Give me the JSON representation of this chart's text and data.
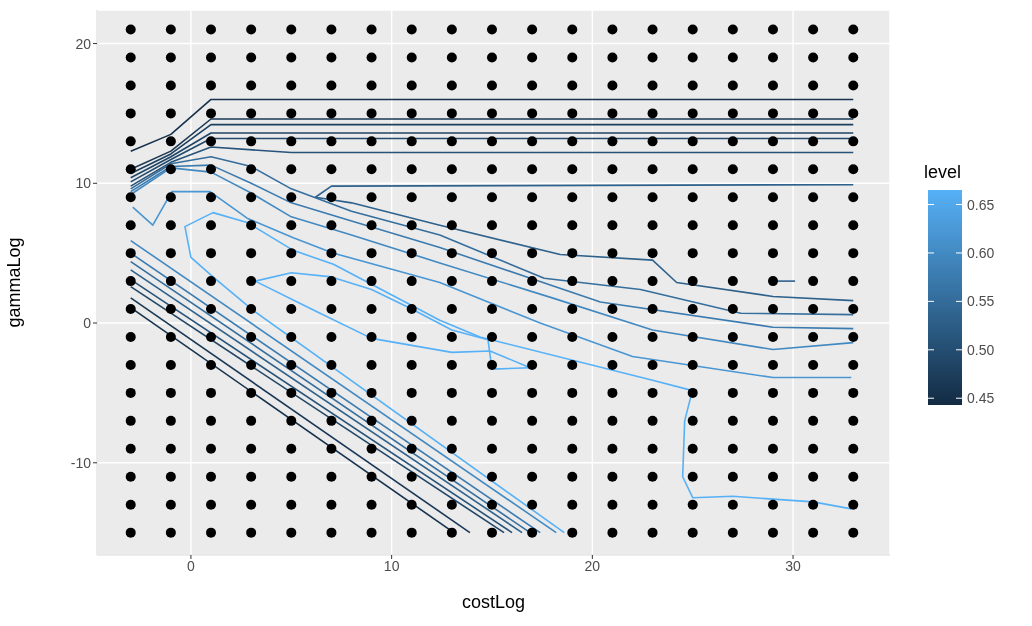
{
  "chart_data": {
    "type": "line",
    "xlabel": "costLog",
    "ylabel": "gammaLog",
    "clabel": "level",
    "clim": [
      0.443,
      0.665
    ],
    "cticks": [
      0.45,
      {
        "value": 0.5,
        "label": "0.50"
      },
      0.55,
      {
        "value": 0.6,
        "label": "0.60"
      },
      0.65
    ],
    "colors": [
      "#132b43",
      "#56b1f7"
    ],
    "xlim": [
      -4.68,
      34.83
    ],
    "ylim": [
      -16.6,
      22.4
    ],
    "xticks": [
      0,
      10,
      20,
      30
    ],
    "yticks": [
      -10,
      0,
      10,
      20
    ],
    "grid": true,
    "marker": "none",
    "series": [
      {
        "type": "scatter",
        "marker": "circle",
        "color": "#000000",
        "x": [
          -3,
          -1,
          1,
          3,
          5,
          7,
          9,
          11,
          13,
          15,
          17,
          19,
          21,
          23,
          25,
          27,
          29,
          31,
          33,
          -3,
          -1,
          1,
          3,
          5,
          7,
          9,
          11,
          13,
          15,
          17,
          19,
          21,
          23,
          25,
          27,
          29,
          31,
          33,
          -3,
          -1,
          1,
          3,
          5,
          7,
          9,
          11,
          13,
          15,
          17,
          19,
          21,
          23,
          25,
          27,
          29,
          31,
          33,
          -3,
          -1,
          1,
          3,
          5,
          7,
          9,
          11,
          13,
          15,
          17,
          19,
          21,
          23,
          25,
          27,
          29,
          31,
          33,
          -3,
          -1,
          1,
          3,
          5,
          7,
          9,
          11,
          13,
          15,
          17,
          19,
          21,
          23,
          25,
          27,
          29,
          31,
          33,
          -3,
          -1,
          1,
          3,
          5,
          7,
          9,
          11,
          13,
          15,
          17,
          19,
          21,
          23,
          25,
          27,
          29,
          31,
          33,
          -3,
          -1,
          1,
          3,
          5,
          7,
          9,
          11,
          13,
          15,
          17,
          19,
          21,
          23,
          25,
          27,
          29,
          31,
          33,
          -3,
          -1,
          1,
          3,
          5,
          7,
          9,
          11,
          13,
          15,
          17,
          19,
          21,
          23,
          25,
          27,
          29,
          31,
          33,
          -3,
          -1,
          1,
          3,
          5,
          7,
          9,
          11,
          13,
          15,
          17,
          19,
          21,
          23,
          25,
          27,
          29,
          31,
          33,
          -3,
          -1,
          1,
          3,
          5,
          7,
          9,
          11,
          13,
          15,
          17,
          19,
          21,
          23,
          25,
          27,
          29,
          31,
          33,
          -3,
          -1,
          1,
          3,
          5,
          7,
          9,
          11,
          13,
          15,
          17,
          19,
          21,
          23,
          25,
          27,
          29,
          31,
          33,
          -3,
          -1,
          1,
          3,
          5,
          7,
          9,
          11,
          13,
          15,
          17,
          19,
          21,
          23,
          25,
          27,
          29,
          31,
          33,
          -3,
          -1,
          1,
          3,
          5,
          7,
          9,
          11,
          13,
          15,
          17,
          19,
          21,
          23,
          25,
          27,
          29,
          31,
          33,
          -3,
          -1,
          1,
          3,
          5,
          7,
          9,
          11,
          13,
          15,
          17,
          19,
          21,
          23,
          25,
          27,
          29,
          31,
          33,
          -3,
          -1,
          1,
          3,
          5,
          7,
          9,
          11,
          13,
          15,
          17,
          19,
          21,
          23,
          25,
          27,
          29,
          31,
          33,
          -3,
          -1,
          1,
          3,
          5,
          7,
          9,
          11,
          13,
          15,
          17,
          19,
          21,
          23,
          25,
          27,
          29,
          31,
          33,
          -3,
          -1,
          1,
          3,
          5,
          7,
          9,
          11,
          13,
          15,
          17,
          19,
          21,
          23,
          25,
          27,
          29,
          31,
          33,
          -3,
          -1,
          1,
          3,
          5,
          7,
          9,
          11,
          13,
          15,
          17,
          19,
          21,
          23,
          25,
          27,
          29,
          31,
          33,
          -3,
          -1,
          1,
          3,
          5,
          7,
          9,
          11,
          13,
          15,
          17,
          19,
          21,
          23,
          25,
          27,
          29,
          31,
          33
        ],
        "values": [
          -15,
          -15,
          -15,
          -15,
          -15,
          -15,
          -15,
          -15,
          -15,
          -15,
          -15,
          -15,
          -15,
          -15,
          -15,
          -15,
          -15,
          -15,
          -15,
          -13,
          -13,
          -13,
          -13,
          -13,
          -13,
          -13,
          -13,
          -13,
          -13,
          -13,
          -13,
          -13,
          -13,
          -13,
          -13,
          -13,
          -13,
          -13,
          -11,
          -11,
          -11,
          -11,
          -11,
          -11,
          -11,
          -11,
          -11,
          -11,
          -11,
          -11,
          -11,
          -11,
          -11,
          -11,
          -11,
          -11,
          -11,
          -9,
          -9,
          -9,
          -9,
          -9,
          -9,
          -9,
          -9,
          -9,
          -9,
          -9,
          -9,
          -9,
          -9,
          -9,
          -9,
          -9,
          -9,
          -9,
          -7,
          -7,
          -7,
          -7,
          -7,
          -7,
          -7,
          -7,
          -7,
          -7,
          -7,
          -7,
          -7,
          -7,
          -7,
          -7,
          -7,
          -7,
          -7,
          -5,
          -5,
          -5,
          -5,
          -5,
          -5,
          -5,
          -5,
          -5,
          -5,
          -5,
          -5,
          -5,
          -5,
          -5,
          -5,
          -5,
          -5,
          -5,
          -3,
          -3,
          -3,
          -3,
          -3,
          -3,
          -3,
          -3,
          -3,
          -3,
          -3,
          -3,
          -3,
          -3,
          -3,
          -3,
          -3,
          -3,
          -3,
          -1,
          -1,
          -1,
          -1,
          -1,
          -1,
          -1,
          -1,
          -1,
          -1,
          -1,
          -1,
          -1,
          -1,
          -1,
          -1,
          -1,
          -1,
          -1,
          1,
          1,
          1,
          1,
          1,
          1,
          1,
          1,
          1,
          1,
          1,
          1,
          1,
          1,
          1,
          1,
          1,
          1,
          1,
          3,
          3,
          3,
          3,
          3,
          3,
          3,
          3,
          3,
          3,
          3,
          3,
          3,
          3,
          3,
          3,
          3,
          3,
          3,
          5,
          5,
          5,
          5,
          5,
          5,
          5,
          5,
          5,
          5,
          5,
          5,
          5,
          5,
          5,
          5,
          5,
          5,
          5,
          7,
          7,
          7,
          7,
          7,
          7,
          7,
          7,
          7,
          7,
          7,
          7,
          7,
          7,
          7,
          7,
          7,
          7,
          7,
          9,
          9,
          9,
          9,
          9,
          9,
          9,
          9,
          9,
          9,
          9,
          9,
          9,
          9,
          9,
          9,
          9,
          9,
          9,
          11,
          11,
          11,
          11,
          11,
          11,
          11,
          11,
          11,
          11,
          11,
          11,
          11,
          11,
          11,
          11,
          11,
          11,
          11,
          13,
          13,
          13,
          13,
          13,
          13,
          13,
          13,
          13,
          13,
          13,
          13,
          13,
          13,
          13,
          13,
          13,
          13,
          13,
          15,
          15,
          15,
          15,
          15,
          15,
          15,
          15,
          15,
          15,
          15,
          15,
          15,
          15,
          15,
          15,
          15,
          15,
          15,
          17,
          17,
          17,
          17,
          17,
          17,
          17,
          17,
          17,
          17,
          17,
          17,
          17,
          17,
          17,
          17,
          17,
          17,
          17,
          19,
          19,
          19,
          19,
          19,
          19,
          19,
          19,
          19,
          19,
          19,
          19,
          19,
          19,
          19,
          19,
          19,
          19,
          19,
          21,
          21,
          21,
          21,
          21,
          21,
          21,
          21,
          21,
          21,
          21,
          21,
          21,
          21,
          21,
          21,
          21,
          21,
          21
        ]
      },
      {
        "color": "#16324c",
        "x": [
          -3,
          -1,
          1,
          33
        ],
        "values": [
          12.3,
          13.5,
          16,
          16
        ]
      },
      {
        "color": "#1a3855",
        "x": [
          -3,
          -1,
          1,
          33
        ],
        "values": [
          11,
          12.3,
          14.6,
          14.6
        ]
      },
      {
        "color": "#1d3f5e",
        "x": [
          -3,
          -1,
          1,
          33
        ],
        "values": [
          10.7,
          12.1,
          14.2,
          14.2
        ]
      },
      {
        "color": "#204667",
        "x": [
          -3,
          -1,
          1,
          33
        ],
        "values": [
          10.4,
          11.9,
          13.6,
          13.6
        ]
      },
      {
        "color": "#23496c",
        "x": [
          -3,
          -1,
          1,
          33
        ],
        "values": [
          10.1,
          11.7,
          13.2,
          13.2
        ]
      },
      {
        "color": "#275379",
        "x": [
          -3,
          -1,
          1,
          5,
          33
        ],
        "values": [
          9.8,
          11.5,
          12.6,
          12.2,
          12.2
        ]
      },
      {
        "color": "#2e618b",
        "x": [
          33,
          7,
          6.2,
          8,
          12.4,
          18.4,
          23,
          24.2,
          29,
          33
        ],
        "values": [
          9.9,
          9.8,
          9,
          8.6,
          7,
          4.9,
          4.5,
          2.9,
          1.9,
          1.6
        ]
      },
      {
        "color": "#2e618b",
        "x": [
          28.9,
          30.1
        ],
        "values": [
          3,
          3
        ]
      },
      {
        "color": "#356e9d",
        "x": [
          -3,
          -1,
          1,
          3,
          5,
          8,
          12.4,
          17.6,
          22.4,
          27.4,
          33
        ],
        "values": [
          9.6,
          11.4,
          11.9,
          11.2,
          9.6,
          8,
          6.3,
          3.2,
          2.4,
          0.7,
          0.6
        ]
      },
      {
        "color": "#3b7baf",
        "x": [
          -3,
          -1,
          1,
          3,
          5,
          8,
          12.4,
          20.4,
          29,
          33
        ],
        "values": [
          9.4,
          11.2,
          11.3,
          10,
          8.6,
          7.3,
          5.4,
          1.5,
          -0.3,
          -0.4
        ]
      },
      {
        "color": "#4289c1",
        "x": [
          -3,
          -1,
          1,
          3,
          5,
          8,
          12.4,
          18,
          23,
          29,
          33
        ],
        "values": [
          9.2,
          11.1,
          10.8,
          9.3,
          7.6,
          6.3,
          4.3,
          1.8,
          -0.5,
          -1.9,
          -1.4
        ]
      },
      {
        "color": "#4996d3",
        "x": [
          -2.9,
          -1.9,
          -0.95,
          0.95,
          2.8,
          5.1,
          7.1,
          12.4,
          17.4,
          22,
          29,
          32.9
        ],
        "values": [
          8.3,
          7,
          9.4,
          9.4,
          7.5,
          6.1,
          5,
          2.9,
          0,
          -2.4,
          -3.9,
          -3.9
        ]
      },
      {
        "color": "#56b1f7",
        "x": [
          18.6,
          3.1,
          1.1,
          0,
          -0.3,
          1.1,
          2.8,
          5.1,
          7.1,
          12.4,
          14.4,
          23,
          24.9,
          24.9,
          24.6,
          24.5,
          25,
          27,
          31,
          32.9
        ],
        "values": [
          -15,
          0.9,
          3.3,
          4.7,
          6.9,
          7.9,
          7.2,
          5.2,
          4.2,
          0.2,
          -1,
          -4.1,
          -4.8,
          -5.3,
          -7,
          -11,
          -12.5,
          -12.4,
          -12.8,
          -13.3
        ]
      },
      {
        "color": "#56b1f7",
        "x": [
          3.2,
          5,
          7,
          9,
          11,
          13,
          14.8,
          15,
          16.9
        ],
        "values": [
          3,
          3.6,
          3.3,
          2.4,
          1,
          -0.5,
          -1.2,
          -3.3,
          -3.2
        ]
      },
      {
        "color": "#56b1f7",
        "x": [
          3.2,
          6,
          9,
          13,
          14.9,
          16.9
        ],
        "values": [
          3,
          1,
          -1.1,
          -2.1,
          -2,
          -3.2
        ]
      },
      {
        "color": "#16324c",
        "x": [
          -3,
          13.1
        ],
        "values": [
          1.1,
          -15
        ]
      },
      {
        "color": "#1a3855",
        "x": [
          -3,
          13.9
        ],
        "values": [
          1.8,
          -15
        ]
      },
      {
        "color": "#204667",
        "x": [
          -3,
          15.6
        ],
        "values": [
          2.6,
          -15
        ]
      },
      {
        "color": "#275379",
        "x": [
          -3,
          16
        ],
        "values": [
          3.1,
          -15
        ]
      },
      {
        "color": "#2e618b",
        "x": [
          -3,
          16.5
        ],
        "values": [
          3.8,
          -15
        ]
      },
      {
        "color": "#356e9d",
        "x": [
          -3,
          16.9
        ],
        "values": [
          4.4,
          -15
        ]
      },
      {
        "color": "#3b7baf",
        "x": [
          -3,
          17.4
        ],
        "values": [
          5,
          -15
        ]
      },
      {
        "color": "#4289c1",
        "x": [
          -3,
          18.2
        ],
        "values": [
          5.9,
          -15
        ]
      }
    ]
  }
}
